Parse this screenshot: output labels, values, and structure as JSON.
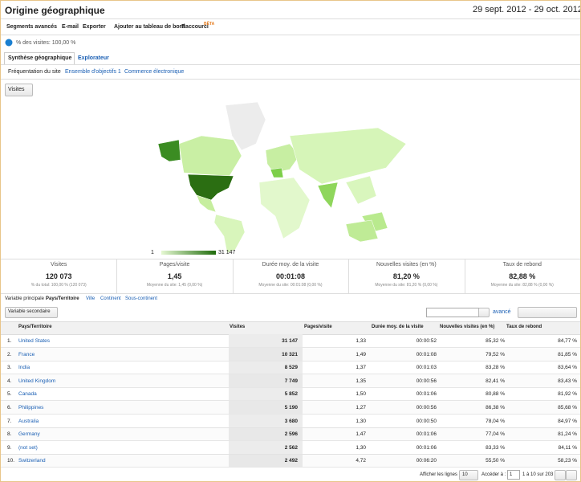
{
  "header": {
    "title": "Origine géographique",
    "date_range": "29 sept. 2012 - 29 oct. 2012"
  },
  "toolbar": {
    "items": [
      "Segments avancés",
      "E-mail",
      "Exporter",
      "Ajouter au tableau de bord",
      "Raccourci"
    ],
    "beta": "BÊTA"
  },
  "segment": "% des visites: 100,00 %",
  "tabs": [
    "Synthèse géographique",
    "Explorateur"
  ],
  "subtabs": [
    "Fréquentation du site",
    "Ensemble d'objectifs 1",
    "Commerce électronique"
  ],
  "metric_select": "Visites",
  "map_legend": {
    "min": "1",
    "max": "31 147"
  },
  "summary": [
    {
      "label": "Visites",
      "value": "120 073",
      "note": "% du total: 100,00 % (120 073)"
    },
    {
      "label": "Pages/visite",
      "value": "1,45",
      "note": "Moyenne du site: 1,45 (0,00 %)"
    },
    {
      "label": "Durée moy. de la visite",
      "value": "00:01:08",
      "note": "Moyenne du site: 00:01:08 (0,00 %)"
    },
    {
      "label": "Nouvelles visites (en %)",
      "value": "81,20 %",
      "note": "Moyenne du site: 81,20 % (0,00 %)"
    },
    {
      "label": "Taux de rebond",
      "value": "82,88 %",
      "note": "Moyenne du site: 82,88 % (0,00 %)"
    }
  ],
  "primary_dimension": {
    "label": "Variable principale :",
    "options": [
      "Pays/Territoire",
      "Ville",
      "Continent",
      "Sous-continent"
    ]
  },
  "secondary_dimension": "Variable secondaire",
  "advanced": "avancé",
  "table": {
    "headers": [
      "Pays/Territoire",
      "Visites",
      "Pages/visite",
      "Durée moy. de la visite",
      "Nouvelles visites (en %)",
      "Taux de rebond"
    ],
    "rows": [
      [
        "1.",
        "United States",
        "31 147",
        "1,33",
        "00:00:52",
        "85,32 %",
        "84,77 %"
      ],
      [
        "2.",
        "France",
        "10 321",
        "1,49",
        "00:01:08",
        "79,52 %",
        "81,85 %"
      ],
      [
        "3.",
        "India",
        "8 529",
        "1,37",
        "00:01:03",
        "83,28 %",
        "83,64 %"
      ],
      [
        "4.",
        "United Kingdom",
        "7 749",
        "1,35",
        "00:00:56",
        "82,41 %",
        "83,43 %"
      ],
      [
        "5.",
        "Canada",
        "5 852",
        "1,50",
        "00:01:06",
        "80,88 %",
        "81,92 %"
      ],
      [
        "6.",
        "Philippines",
        "5 190",
        "1,27",
        "00:00:56",
        "86,38 %",
        "85,68 %"
      ],
      [
        "7.",
        "Australia",
        "3 680",
        "1,30",
        "00:00:50",
        "78,04 %",
        "84,97 %"
      ],
      [
        "8.",
        "Germany",
        "2 596",
        "1,47",
        "00:01:06",
        "77,04 %",
        "81,24 %"
      ],
      [
        "9.",
        "(not set)",
        "2 562",
        "1,30",
        "00:01:06",
        "83,33 %",
        "84,11 %"
      ],
      [
        "10.",
        "Switzerland",
        "2 492",
        "4,72",
        "00:06:20",
        "55,50 %",
        "58,23 %"
      ]
    ]
  },
  "pagination": {
    "rows_label": "Afficher les lignes :",
    "rows_value": "10",
    "goto_label": "Accéder à :",
    "goto_value": "1",
    "range": "1 à 10 sur 203"
  }
}
